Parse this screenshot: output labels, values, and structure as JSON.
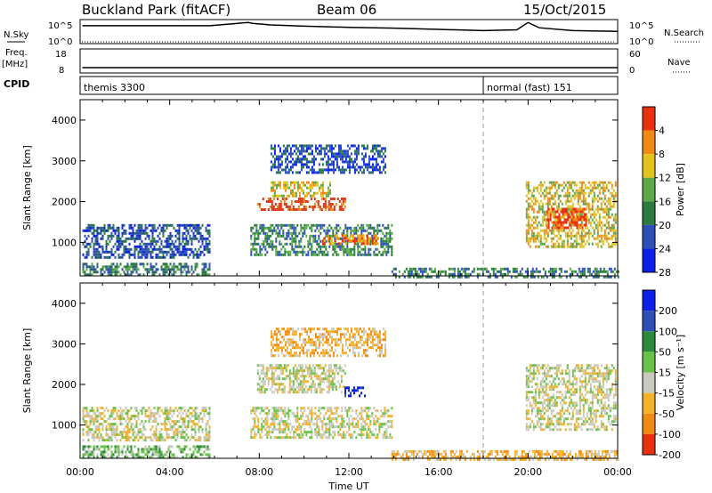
{
  "header": {
    "station": "Buckland Park (fitACF)",
    "beam": "Beam 06",
    "date": "15/Oct/2015"
  },
  "strip_labels": {
    "nsky": "N.Sky",
    "nsearch": "N.Search",
    "freq_line1": "Freq.",
    "freq_line2": "[MHz]",
    "nave": "Nave",
    "cpid": "CPID",
    "nsky_tick_hi": "10^5",
    "nsky_tick_lo": "10^0",
    "freq_tick_hi": "18",
    "freq_tick_lo": "8",
    "nave_tick_hi": "60",
    "nave_tick_lo": "0"
  },
  "cpid_segments": [
    {
      "label": "themis 3300",
      "start_hour": 0.0
    },
    {
      "label": "normal (fast) 151",
      "start_hour": 18.0
    }
  ],
  "chart_data": [
    {
      "type": "heatmap",
      "name": "power",
      "xlabel": "",
      "ylabel": "Slant Range [km]",
      "xlim": [
        0,
        24
      ],
      "ylim": [
        180,
        4500
      ],
      "y_ticks": [
        "1000",
        "2000",
        "3000",
        "4000"
      ],
      "colorbar_label": "Power [dB]",
      "colorbar_ticks": [
        "4",
        "8",
        "12",
        "16",
        "20",
        "24",
        "28"
      ],
      "colorbar_range": [
        0,
        30
      ],
      "colors": [
        "#0b22e6",
        "#2f4fb8",
        "#2b7a3e",
        "#5aa84a",
        "#e2c21c",
        "#f08a12",
        "#e8320e"
      ],
      "data_gaps_hours": [
        [
          5.8,
          7.5
        ],
        [
          7.7,
          7.8
        ]
      ],
      "regions": [
        {
          "t0": 0.1,
          "t1": 5.8,
          "r0": 180,
          "r1": 500,
          "level": 2
        },
        {
          "t0": 0.1,
          "t1": 5.8,
          "r0": 650,
          "r1": 1450,
          "level": 1
        },
        {
          "t0": 7.6,
          "t1": 13.9,
          "r0": 700,
          "r1": 1450,
          "level": 2
        },
        {
          "t0": 10.8,
          "t1": 13.3,
          "r0": 950,
          "r1": 1200,
          "level": 5
        },
        {
          "t0": 7.9,
          "t1": 11.8,
          "r0": 1800,
          "r1": 2100,
          "level": 6
        },
        {
          "t0": 8.5,
          "t1": 11.2,
          "r0": 2150,
          "r1": 2500,
          "level": 4
        },
        {
          "t0": 8.5,
          "t1": 13.6,
          "r0": 2700,
          "r1": 3400,
          "level": 1
        },
        {
          "t0": 13.9,
          "t1": 24.0,
          "r0": 180,
          "r1": 380,
          "level": 2
        },
        {
          "t0": 19.9,
          "t1": 23.9,
          "r0": 900,
          "r1": 2500,
          "level": 4
        },
        {
          "t0": 20.8,
          "t1": 22.6,
          "r0": 1350,
          "r1": 1850,
          "level": 6
        }
      ]
    },
    {
      "type": "heatmap",
      "name": "velocity",
      "xlabel": "Time UT",
      "ylabel": "Slant Range [km]",
      "xlim": [
        0,
        24
      ],
      "ylim": [
        180,
        4500
      ],
      "x_ticks": [
        "00:00",
        "04:00",
        "08:00",
        "12:00",
        "16:00",
        "20:00",
        "00:00"
      ],
      "y_ticks": [
        "1000",
        "2000",
        "3000",
        "4000"
      ],
      "colorbar_label": "Velocity [m s⁻¹]",
      "colorbar_ticks": [
        "200",
        "100",
        "50",
        "15",
        "-15",
        "-50",
        "-100",
        "-200"
      ],
      "colorbar_range": [
        -250,
        250
      ],
      "colors": [
        "#e8320e",
        "#f08a12",
        "#f2b22a",
        "#c9c9c0",
        "#6ac24a",
        "#2b8a3e",
        "#2f4fb8",
        "#0b22e6"
      ],
      "regions": [
        {
          "t0": 0.1,
          "t1": 5.8,
          "r0": 180,
          "r1": 500,
          "level": 4
        },
        {
          "t0": 0.1,
          "t1": 5.8,
          "r0": 650,
          "r1": 1450,
          "level": 3
        },
        {
          "t0": 7.6,
          "t1": 13.9,
          "r0": 700,
          "r1": 1450,
          "level": 3
        },
        {
          "t0": 7.9,
          "t1": 11.8,
          "r0": 1800,
          "r1": 2500,
          "level": 3
        },
        {
          "t0": 11.8,
          "t1": 12.7,
          "r0": 1750,
          "r1": 1950,
          "level": 7
        },
        {
          "t0": 8.5,
          "t1": 13.6,
          "r0": 2700,
          "r1": 3400,
          "level": 2
        },
        {
          "t0": 13.9,
          "t1": 24.0,
          "r0": 180,
          "r1": 380,
          "level": 2
        },
        {
          "t0": 19.9,
          "t1": 23.9,
          "r0": 900,
          "r1": 2500,
          "level": 3
        }
      ]
    }
  ],
  "nsky_series": {
    "x": [
      0.1,
      5.8,
      7.5,
      7.7,
      8.5,
      10,
      12,
      14,
      16,
      18,
      19.5,
      20,
      20.5,
      22,
      24
    ],
    "y": [
      4.2,
      4.2,
      5.0,
      4.8,
      4.4,
      4.1,
      3.8,
      3.6,
      3.3,
      3.0,
      3.2,
      5.0,
      3.7,
      3.0,
      2.8
    ]
  },
  "freq_series": {
    "x": [
      0.1,
      5.8,
      7.5,
      24
    ],
    "y": [
      10,
      10,
      10,
      10
    ]
  }
}
